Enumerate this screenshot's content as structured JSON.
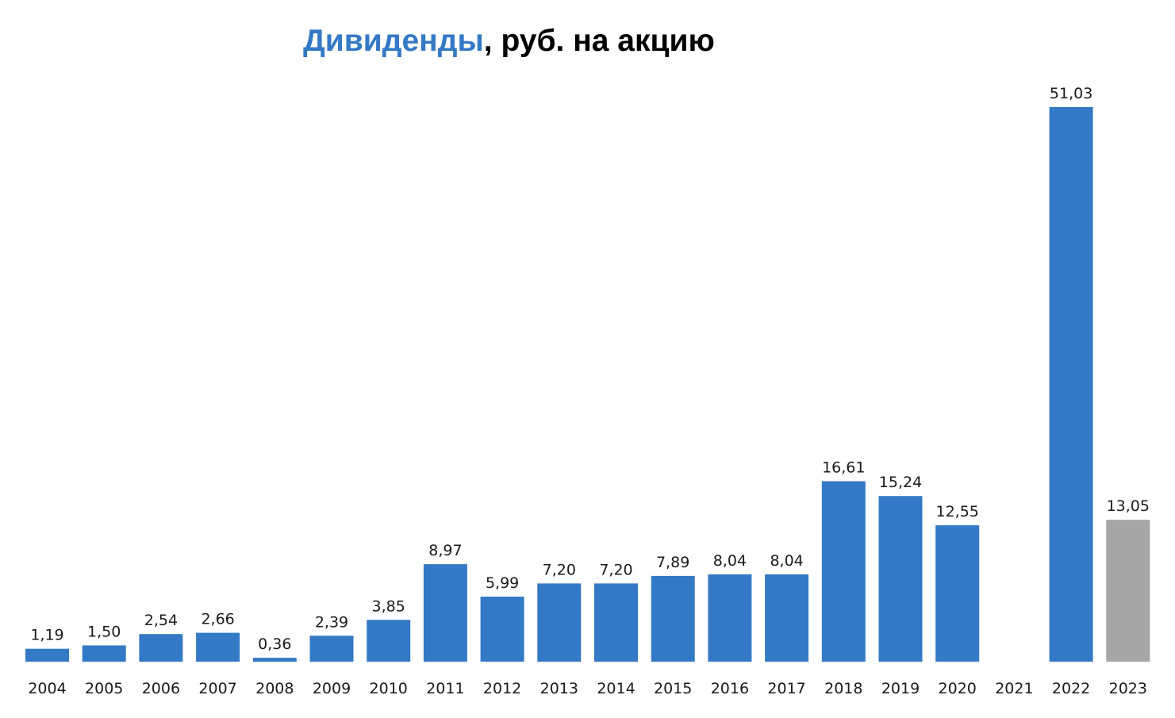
{
  "chart_data": {
    "type": "bar",
    "title": {
      "accent": "Дивиденды",
      "rest": ", руб. на акцию"
    },
    "xlabel": "",
    "ylabel": "",
    "ylim": [
      0,
      51.03
    ],
    "grid": false,
    "legend": "none",
    "colors": {
      "primary": "#3479c5",
      "highlight": "#a6a6a6",
      "title_accent": "#3479c5",
      "text": "#000000"
    },
    "categories": [
      "2004",
      "2005",
      "2006",
      "2007",
      "2008",
      "2009",
      "2010",
      "2011",
      "2012",
      "2013",
      "2014",
      "2015",
      "2016",
      "2017",
      "2018",
      "2019",
      "2020",
      "2021",
      "2022",
      "2023"
    ],
    "values": [
      1.19,
      1.5,
      2.54,
      2.66,
      0.36,
      2.39,
      3.85,
      8.97,
      5.99,
      7.2,
      7.2,
      7.89,
      8.04,
      8.04,
      16.61,
      15.24,
      12.55,
      null,
      51.03,
      13.05
    ],
    "labels": [
      "1,19",
      "1,50",
      "2,54",
      "2,66",
      "0,36",
      "2,39",
      "3,85",
      "8,97",
      "5,99",
      "7,20",
      "7,20",
      "7,89",
      "8,04",
      "8,04",
      "16,61",
      "15,24",
      "12,55",
      "",
      "51,03",
      "13,05"
    ],
    "bar_colors": [
      "primary",
      "primary",
      "primary",
      "primary",
      "primary",
      "primary",
      "primary",
      "primary",
      "primary",
      "primary",
      "primary",
      "primary",
      "primary",
      "primary",
      "primary",
      "primary",
      "primary",
      "primary",
      "primary",
      "highlight"
    ]
  }
}
